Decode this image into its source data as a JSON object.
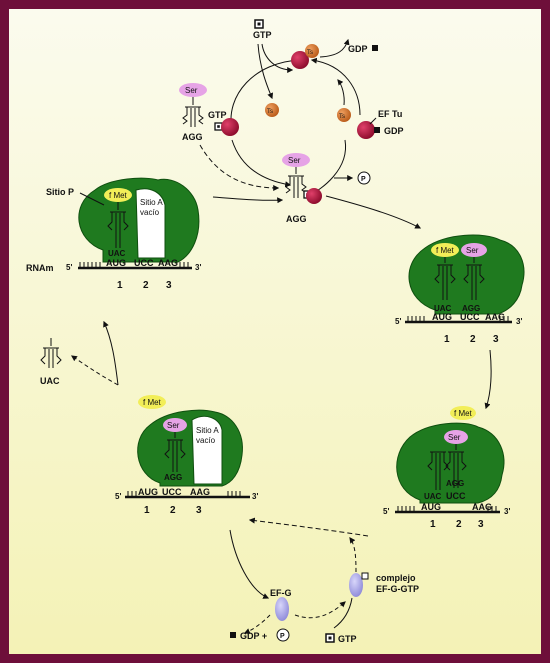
{
  "colors": {
    "border": "#6e0f3a",
    "background_top": "#fbfbee",
    "background_bottom": "#f4f2b6",
    "ribosome": "#1f7a1f",
    "ribosome_dark": "#0f4f0f",
    "ef_tu": "#b0103a",
    "ts": "#d2772a",
    "ser": "#e6a3e6",
    "fmet": "#f2ee58",
    "ef_g": "#a9a6e8"
  },
  "top_cycle": {
    "gtp_top": "GTP",
    "gdp_top": "GDP",
    "ts_labels": [
      "Ts",
      "Ts",
      "Ts"
    ],
    "ef_tu": "EF Tu",
    "gdp_right": "GDP",
    "ser_left": "Ser",
    "gtp_left": "GTP",
    "agg_left": "AGG",
    "ser_center": "Ser",
    "agg_center": "AGG",
    "pi": "P"
  },
  "ribosome1": {
    "sitio_p": "Sitio P",
    "fmet": "f Met",
    "sitio_a": "Sitio A",
    "vacio": "vacío",
    "uac": "UAC",
    "aug": "AUG",
    "ucc": "UCC",
    "aag": "AAG",
    "rnam": "RNAm",
    "five": "5'",
    "three": "3'",
    "sites": [
      "1",
      "2",
      "3"
    ]
  },
  "ribosome2": {
    "fmet": "f Met",
    "ser": "Ser",
    "uac": "UAC",
    "agg": "AGG",
    "aug": "AUG",
    "ucc": "UCC",
    "aag": "AAG",
    "five": "5'",
    "three": "3'",
    "sites": [
      "1",
      "2",
      "3"
    ]
  },
  "ribosome3": {
    "fmet": "f Met",
    "ser": "Ser",
    "uac": "UAC",
    "agg": "AGG",
    "aug": "AUG",
    "ucc": "UCC",
    "aag": "AAG",
    "five": "5'",
    "three": "3'",
    "sites": [
      "1",
      "2",
      "3"
    ]
  },
  "ribosome4": {
    "fmet": "f Met",
    "ser": "Ser",
    "agg": "AGG",
    "sitio_a": "Sitio A",
    "vacio": "vacío",
    "aug": "AUG",
    "ucc": "UCC",
    "aag": "AAG",
    "five": "5'",
    "three": "3'",
    "sites": [
      "1",
      "2",
      "3"
    ]
  },
  "released_trna": "UAC",
  "ef_g_cycle": {
    "ef_g": "EF-G",
    "gdp_plus": "GDP +",
    "pi": "P",
    "gtp": "GTP",
    "complejo": "complejo",
    "complex_name": "EF-G-GTP"
  }
}
